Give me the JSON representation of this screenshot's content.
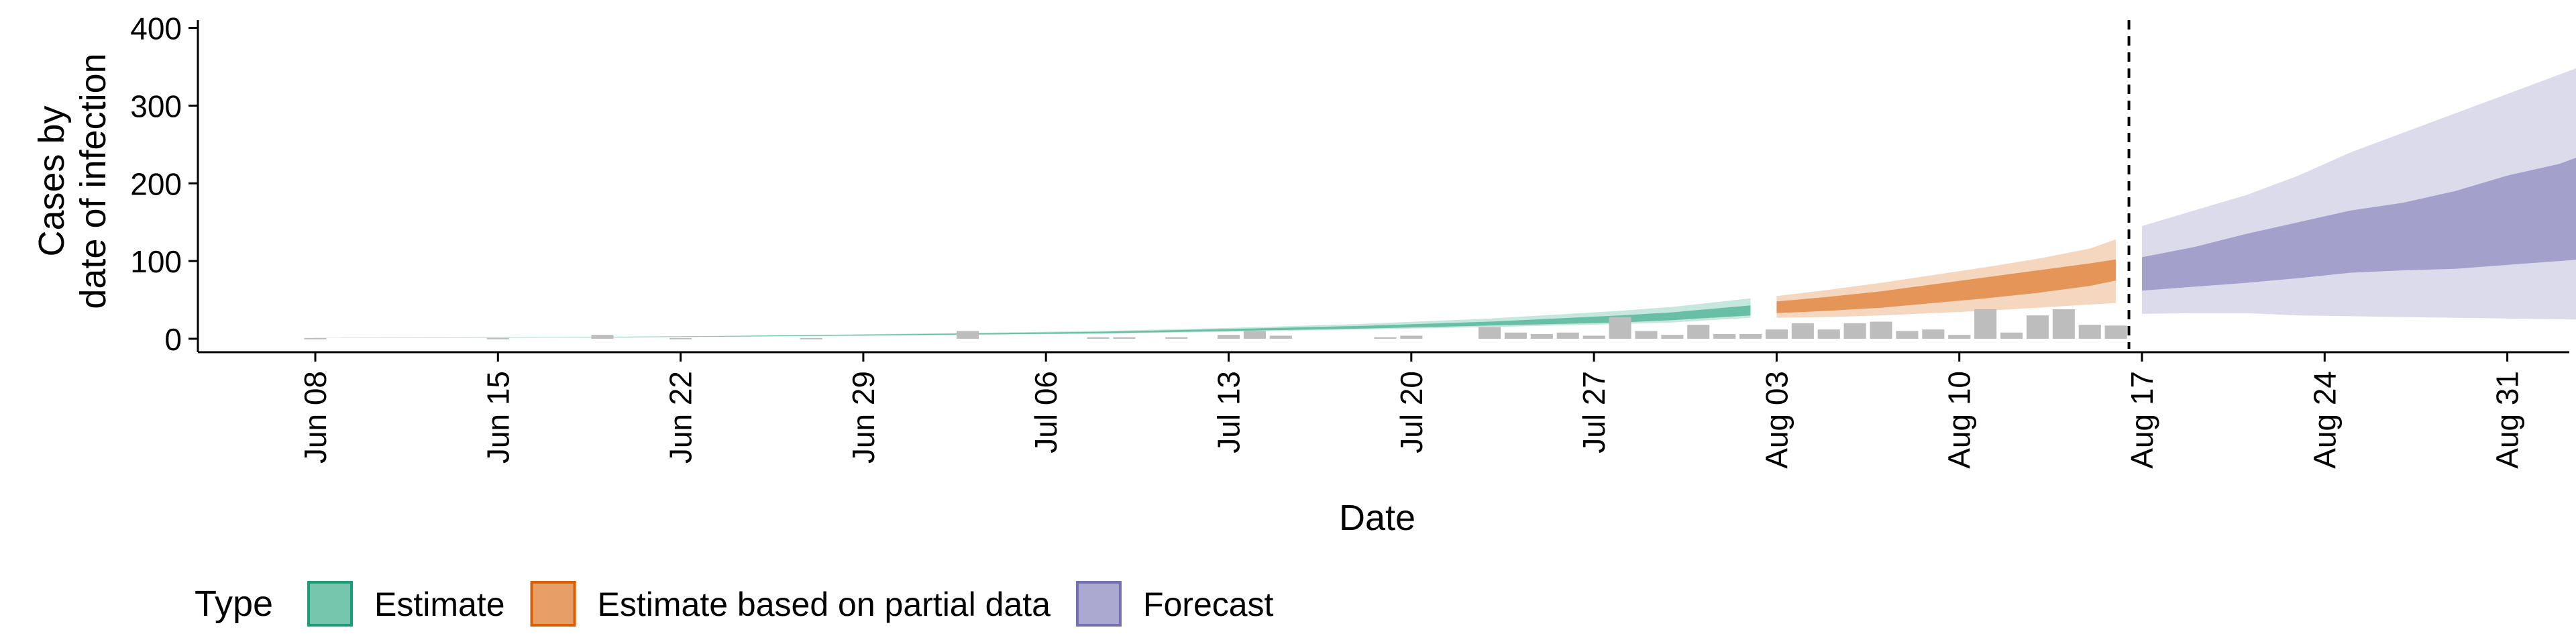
{
  "chart_data": {
    "type": "area",
    "title": "",
    "xlabel": "Date",
    "ylabel": [
      "Cases by",
      "date of infection"
    ],
    "ylim": [
      0,
      410
    ],
    "yticks": [
      0,
      100,
      200,
      300,
      400
    ],
    "xticks": [
      "Jun 08",
      "Jun 15",
      "Jun 22",
      "Jun 29",
      "Jul 06",
      "Jul 13",
      "Jul 20",
      "Jul 27",
      "Aug 03",
      "Aug 10",
      "Aug 17",
      "Aug 24",
      "Aug 31"
    ],
    "forecast_start_day": 69.5,
    "legend": {
      "title": "Type",
      "position": "bottom-left",
      "items": [
        {
          "label": "Estimate",
          "color": "#1b9e77"
        },
        {
          "label": "Estimate based on partial data",
          "color": "#d95f02"
        },
        {
          "label": "Forecast",
          "color": "#7570b3"
        }
      ]
    },
    "note_x": "x values are days since Jun 08",
    "bars": {
      "color": "#bdbdbd",
      "x": [
        0,
        7,
        11,
        14,
        19,
        25,
        30,
        31,
        33,
        35,
        36,
        37,
        41,
        42,
        45,
        46,
        47,
        48,
        49,
        50,
        51,
        52,
        53,
        54,
        55,
        56,
        57,
        58,
        59,
        60,
        61,
        62,
        63,
        64,
        65,
        66,
        67,
        68,
        69
      ],
      "values": [
        1,
        1,
        5,
        1,
        1,
        10,
        2,
        2,
        2,
        5,
        10,
        4,
        2,
        4,
        15,
        8,
        6,
        8,
        4,
        28,
        10,
        5,
        18,
        6,
        6,
        12,
        20,
        12,
        20,
        22,
        10,
        12,
        5,
        38,
        8,
        30,
        38,
        18,
        17
      ]
    },
    "series": [
      {
        "name": "Estimate",
        "color": "#1b9e77",
        "x": [
          0,
          5,
          10,
          15,
          20,
          25,
          30,
          35,
          40,
          45,
          50,
          52,
          55
        ],
        "median": [
          1,
          1.5,
          2,
          3,
          4.5,
          6,
          8,
          11,
          14.5,
          19,
          25,
          29,
          37
        ],
        "inner_lo": [
          1,
          1.4,
          1.8,
          2.7,
          4,
          5.5,
          7,
          10,
          13,
          17,
          21,
          24,
          30
        ],
        "inner_hi": [
          1,
          1.6,
          2.2,
          3.3,
          5,
          6.8,
          9,
          12.5,
          16.5,
          22,
          30,
          34,
          43
        ],
        "outer_lo": [
          0.8,
          1.2,
          1.6,
          2.4,
          3.5,
          5,
          6.5,
          9,
          12,
          15,
          19,
          21,
          27
        ],
        "outer_hi": [
          1.2,
          1.8,
          2.4,
          3.6,
          5.4,
          7.5,
          10,
          14,
          19,
          26,
          36,
          41,
          52
        ]
      },
      {
        "name": "Estimate based on partial data",
        "color": "#d95f02",
        "x": [
          56,
          58,
          60,
          62,
          64,
          66,
          68,
          69
        ],
        "median": [
          40,
          44,
          50,
          57,
          65,
          73,
          85,
          92
        ],
        "inner_lo": [
          33,
          36,
          40,
          46,
          52,
          59,
          68,
          75
        ],
        "inner_hi": [
          48,
          54,
          61,
          70,
          79,
          88,
          97,
          102
        ],
        "outer_lo": [
          27,
          28,
          30,
          33,
          36,
          40,
          44,
          46
        ],
        "outer_hi": [
          55,
          63,
          72,
          82,
          92,
          103,
          116,
          128
        ]
      },
      {
        "name": "Forecast",
        "color": "#7570b3",
        "x": [
          70,
          72,
          74,
          76,
          78,
          80,
          82,
          84,
          86,
          88,
          90
        ],
        "median": [
          85,
          92,
          105,
          120,
          135,
          150,
          160,
          175,
          190,
          210,
          225
        ],
        "inner_lo": [
          62,
          67,
          72,
          78,
          85,
          88,
          90,
          95,
          100,
          105,
          112
        ],
        "inner_hi": [
          105,
          118,
          135,
          150,
          165,
          175,
          190,
          210,
          225,
          250,
          245
        ],
        "outer_lo": [
          32,
          33,
          33,
          30,
          29,
          28,
          27,
          26,
          25,
          24,
          23
        ],
        "outer_hi": [
          145,
          165,
          185,
          210,
          240,
          265,
          290,
          315,
          340,
          365,
          390
        ]
      }
    ]
  }
}
